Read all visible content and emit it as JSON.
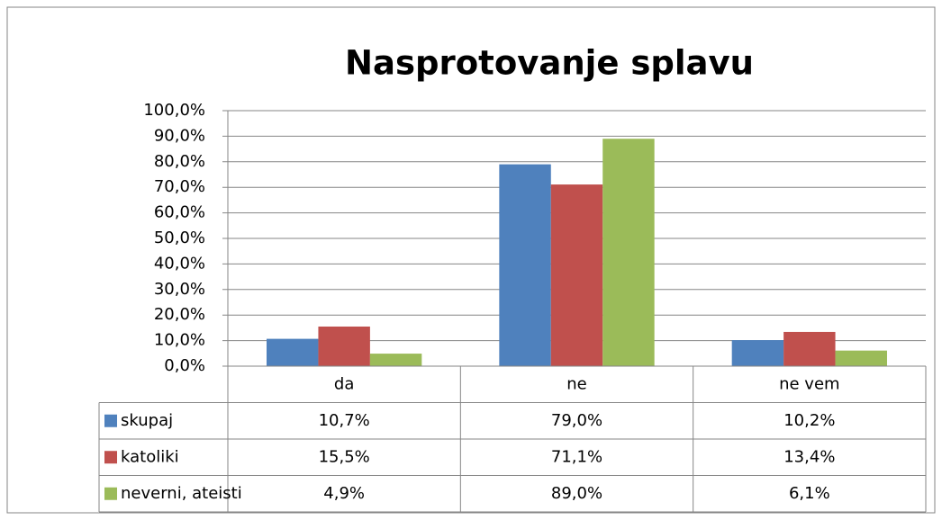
{
  "chart_data": {
    "type": "bar",
    "title": "Nasprotovanje splavu",
    "categories": [
      "da",
      "ne",
      "ne vem"
    ],
    "series": [
      {
        "name": "skupaj",
        "color": "#4f81bd",
        "values": [
          10.7,
          79.0,
          10.2
        ],
        "value_labels": [
          "10,7%",
          "79,0%",
          "10,2%"
        ]
      },
      {
        "name": "katoliki",
        "color": "#c0504d",
        "values": [
          15.5,
          71.1,
          13.4
        ],
        "value_labels": [
          "15,5%",
          "71,1%",
          "13,4%"
        ]
      },
      {
        "name": "neverni, ateisti",
        "color": "#9bbb59",
        "values": [
          4.9,
          89.0,
          6.1
        ],
        "value_labels": [
          "4,9%",
          "89,0%",
          "6,1%"
        ]
      }
    ],
    "ylim": [
      0,
      100
    ],
    "yticks": [
      {
        "value": 0,
        "label": "0,0%"
      },
      {
        "value": 10,
        "label": "10,0%"
      },
      {
        "value": 20,
        "label": "20,0%"
      },
      {
        "value": 30,
        "label": "30,0%"
      },
      {
        "value": 40,
        "label": "40,0%"
      },
      {
        "value": 50,
        "label": "50,0%"
      },
      {
        "value": 60,
        "label": "60,0%"
      },
      {
        "value": 70,
        "label": "70,0%"
      },
      {
        "value": 80,
        "label": "80,0%"
      },
      {
        "value": 90,
        "label": "90,0%"
      },
      {
        "value": 100,
        "label": "100,0%"
      }
    ],
    "grid": true
  }
}
